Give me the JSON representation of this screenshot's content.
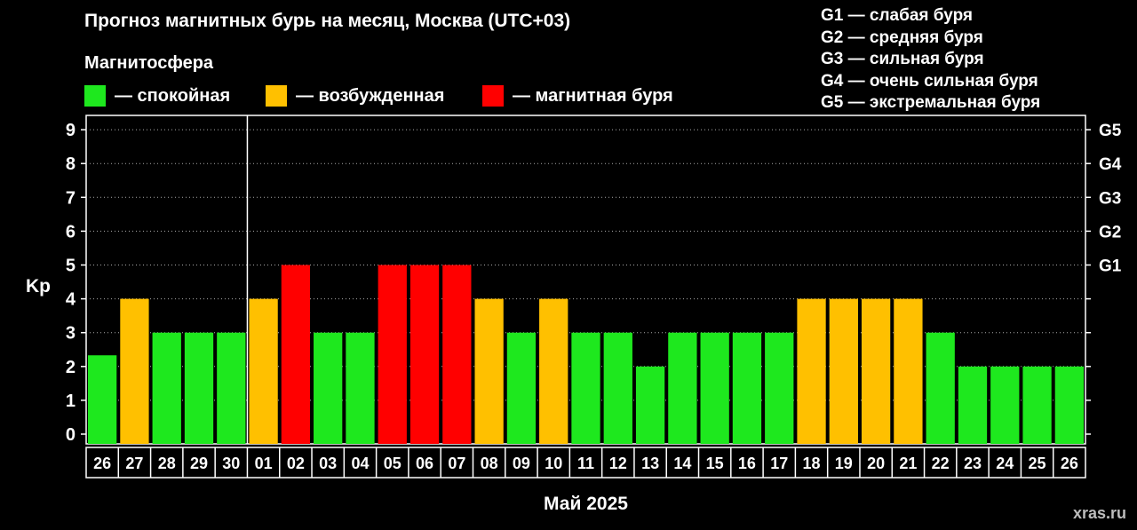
{
  "chart_data": {
    "type": "bar",
    "title": "Прогноз магнитных бурь на месяц, Москва (UTC+03)",
    "subtitle": "Магнитосфера",
    "ylabel": "Kp",
    "xlabel": "Май 2025",
    "ylim": [
      0,
      9
    ],
    "yticks": [
      "0",
      "1",
      "2",
      "3",
      "4",
      "5",
      "6",
      "7",
      "8",
      "9"
    ],
    "right_ticks": [
      {
        "value": 5,
        "label": "G1"
      },
      {
        "value": 6,
        "label": "G2"
      },
      {
        "value": 7,
        "label": "G3"
      },
      {
        "value": 8,
        "label": "G4"
      },
      {
        "value": 9,
        "label": "G5"
      }
    ],
    "categories": [
      "26",
      "27",
      "28",
      "29",
      "30",
      "01",
      "02",
      "03",
      "04",
      "05",
      "06",
      "07",
      "08",
      "09",
      "10",
      "11",
      "12",
      "13",
      "14",
      "15",
      "16",
      "17",
      "18",
      "19",
      "20",
      "21",
      "22",
      "23",
      "24",
      "25",
      "26"
    ],
    "values": [
      2.33,
      4,
      3,
      3,
      3,
      4,
      5,
      3,
      3,
      5,
      5,
      5,
      4,
      3,
      4,
      3,
      3,
      2,
      3,
      3,
      3,
      3,
      4,
      4,
      4,
      4,
      3,
      2,
      2,
      2,
      2
    ],
    "month_separator_after_index": 4,
    "colors": {
      "quiet": "#1ee81e",
      "excited": "#ffc000",
      "storm": "#ff0000"
    },
    "legend": [
      {
        "key": "quiet",
        "label": "— спокойная"
      },
      {
        "key": "excited",
        "label": "— возбужденная"
      },
      {
        "key": "storm",
        "label": "— магнитная буря"
      }
    ],
    "storm_levels": [
      "G1 — слабая буря",
      "G2 — средняя буря",
      "G3 — сильная буря",
      "G4 — очень сильная буря",
      "G5 — экстремальная буря"
    ]
  },
  "watermark": "xras.ru"
}
